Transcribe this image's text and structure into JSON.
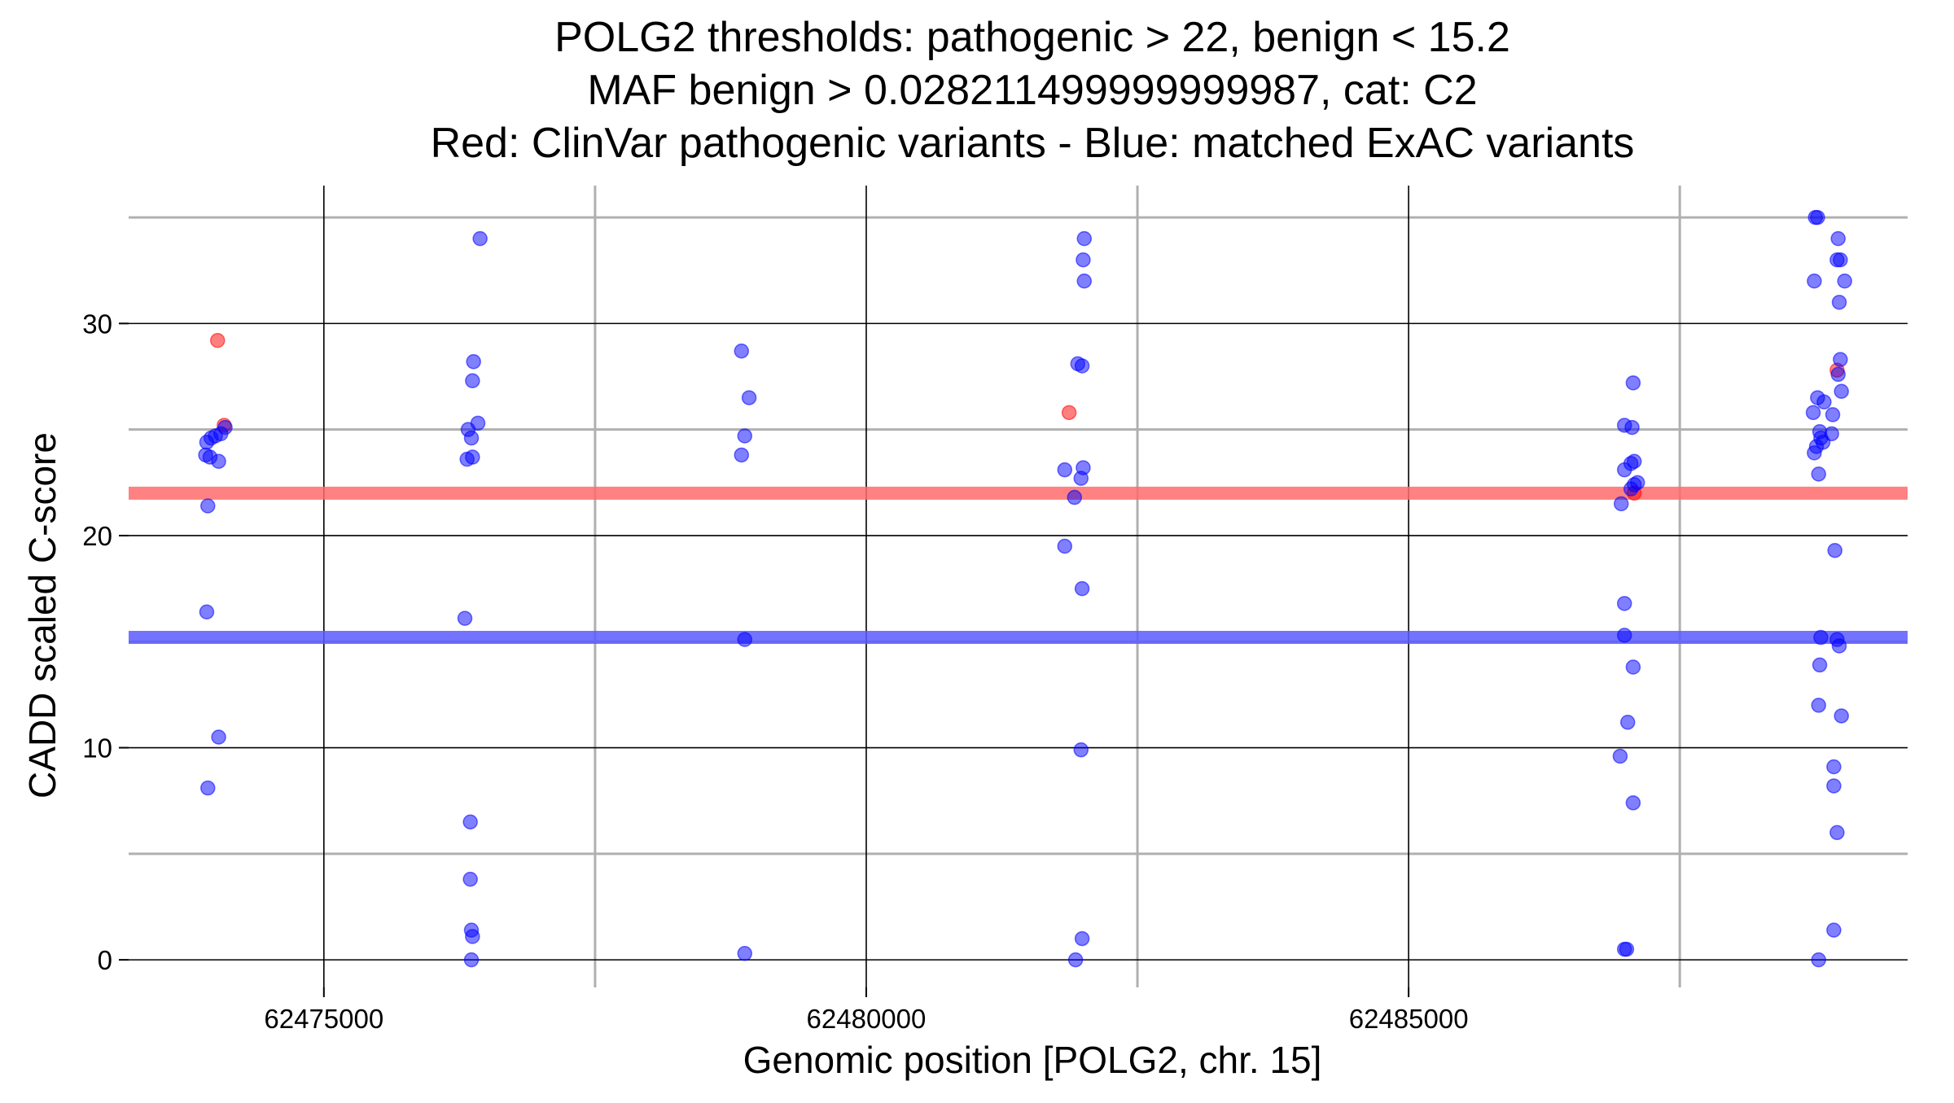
{
  "chart_data": {
    "type": "scatter",
    "title_lines": [
      "POLG2 thresholds: pathogenic > 22, benign < 15.2",
      "MAF benign > 0.028211499999999987, cat: C2",
      "Red: ClinVar pathogenic variants - Blue: matched ExAC variants"
    ],
    "xlabel": "Genomic position [POLG2, chr. 15]",
    "ylabel": "CADD scaled C-score",
    "xlim": [
      62473200,
      62489600
    ],
    "ylim": [
      -1.3,
      36.5
    ],
    "x_major_ticks": [
      62475000,
      62480000,
      62485000
    ],
    "x_tick_labels": [
      "62475000",
      "62480000",
      "62485000"
    ],
    "x_minor_lines": [
      62477500,
      62482500,
      62487500
    ],
    "y_major_ticks": [
      0,
      10,
      20,
      30
    ],
    "y_tick_labels": [
      "0",
      "10",
      "20",
      "30"
    ],
    "y_minor_lines": [
      5,
      15,
      25,
      35
    ],
    "thresholds": [
      {
        "name": "pathogenic",
        "value": 22,
        "color": "#ff6b6b"
      },
      {
        "name": "benign",
        "value": 15.2,
        "color": "#5a5aff"
      }
    ],
    "series": [
      {
        "name": "ClinVar pathogenic variants",
        "color": "#ff0000",
        "points": [
          [
            62474020,
            29.2
          ],
          [
            62474080,
            25.2
          ],
          [
            62481870,
            25.8
          ],
          [
            62487080,
            22.0
          ],
          [
            62488950,
            27.8
          ]
        ]
      },
      {
        "name": "matched ExAC variants",
        "color": "#0000ff",
        "points": [
          [
            62473920,
            24.4
          ],
          [
            62473960,
            24.6
          ],
          [
            62474000,
            24.7
          ],
          [
            62474050,
            24.8
          ],
          [
            62474090,
            25.1
          ],
          [
            62473910,
            23.8
          ],
          [
            62473950,
            23.7
          ],
          [
            62474030,
            23.5
          ],
          [
            62473930,
            21.4
          ],
          [
            62473920,
            16.4
          ],
          [
            62474030,
            10.5
          ],
          [
            62473930,
            8.1
          ],
          [
            62476440,
            34.0
          ],
          [
            62476380,
            28.2
          ],
          [
            62476370,
            27.3
          ],
          [
            62476420,
            25.3
          ],
          [
            62476330,
            25.0
          ],
          [
            62476360,
            24.6
          ],
          [
            62476320,
            23.6
          ],
          [
            62476370,
            23.7
          ],
          [
            62476300,
            16.1
          ],
          [
            62476350,
            6.5
          ],
          [
            62476350,
            3.8
          ],
          [
            62476360,
            1.4
          ],
          [
            62476370,
            1.1
          ],
          [
            62476360,
            0.0
          ],
          [
            62478850,
            28.7
          ],
          [
            62478920,
            26.5
          ],
          [
            62478880,
            24.7
          ],
          [
            62478850,
            23.8
          ],
          [
            62478880,
            15.1
          ],
          [
            62478880,
            0.3
          ],
          [
            62482010,
            34.0
          ],
          [
            62482000,
            33.0
          ],
          [
            62482010,
            32.0
          ],
          [
            62481950,
            28.1
          ],
          [
            62481990,
            28.0
          ],
          [
            62481830,
            23.1
          ],
          [
            62482000,
            23.2
          ],
          [
            62481980,
            22.7
          ],
          [
            62481920,
            21.8
          ],
          [
            62481830,
            19.5
          ],
          [
            62481990,
            17.5
          ],
          [
            62481980,
            9.9
          ],
          [
            62481990,
            1.0
          ],
          [
            62481930,
            0.0
          ],
          [
            62487070,
            27.2
          ],
          [
            62486990,
            25.2
          ],
          [
            62487060,
            25.1
          ],
          [
            62486990,
            23.1
          ],
          [
            62487050,
            23.4
          ],
          [
            62487080,
            23.5
          ],
          [
            62487080,
            22.4
          ],
          [
            62487110,
            22.5
          ],
          [
            62487050,
            22.2
          ],
          [
            62486960,
            21.5
          ],
          [
            62486990,
            16.8
          ],
          [
            62486990,
            15.3
          ],
          [
            62487070,
            13.8
          ],
          [
            62487020,
            11.2
          ],
          [
            62486950,
            9.6
          ],
          [
            62487070,
            7.4
          ],
          [
            62486990,
            0.5
          ],
          [
            62487010,
            0.5
          ],
          [
            62488750,
            35.0
          ],
          [
            62488770,
            35.0
          ],
          [
            62488960,
            34.0
          ],
          [
            62488950,
            33.0
          ],
          [
            62488980,
            33.0
          ],
          [
            62488740,
            32.0
          ],
          [
            62489020,
            32.0
          ],
          [
            62488970,
            31.0
          ],
          [
            62488980,
            28.3
          ],
          [
            62488960,
            27.6
          ],
          [
            62488990,
            26.8
          ],
          [
            62488770,
            26.5
          ],
          [
            62488830,
            26.3
          ],
          [
            62488910,
            25.7
          ],
          [
            62488730,
            25.8
          ],
          [
            62488790,
            24.9
          ],
          [
            62488900,
            24.8
          ],
          [
            62488760,
            24.2
          ],
          [
            62488800,
            24.6
          ],
          [
            62488820,
            24.4
          ],
          [
            62488740,
            23.9
          ],
          [
            62488780,
            22.9
          ],
          [
            62488930,
            19.3
          ],
          [
            62488800,
            15.2
          ],
          [
            62488950,
            15.1
          ],
          [
            62488970,
            14.8
          ],
          [
            62488790,
            13.9
          ],
          [
            62488780,
            12.0
          ],
          [
            62488990,
            11.5
          ],
          [
            62488920,
            9.1
          ],
          [
            62488920,
            8.2
          ],
          [
            62488950,
            6.0
          ],
          [
            62488920,
            1.4
          ],
          [
            62488780,
            0.0
          ]
        ]
      }
    ]
  }
}
